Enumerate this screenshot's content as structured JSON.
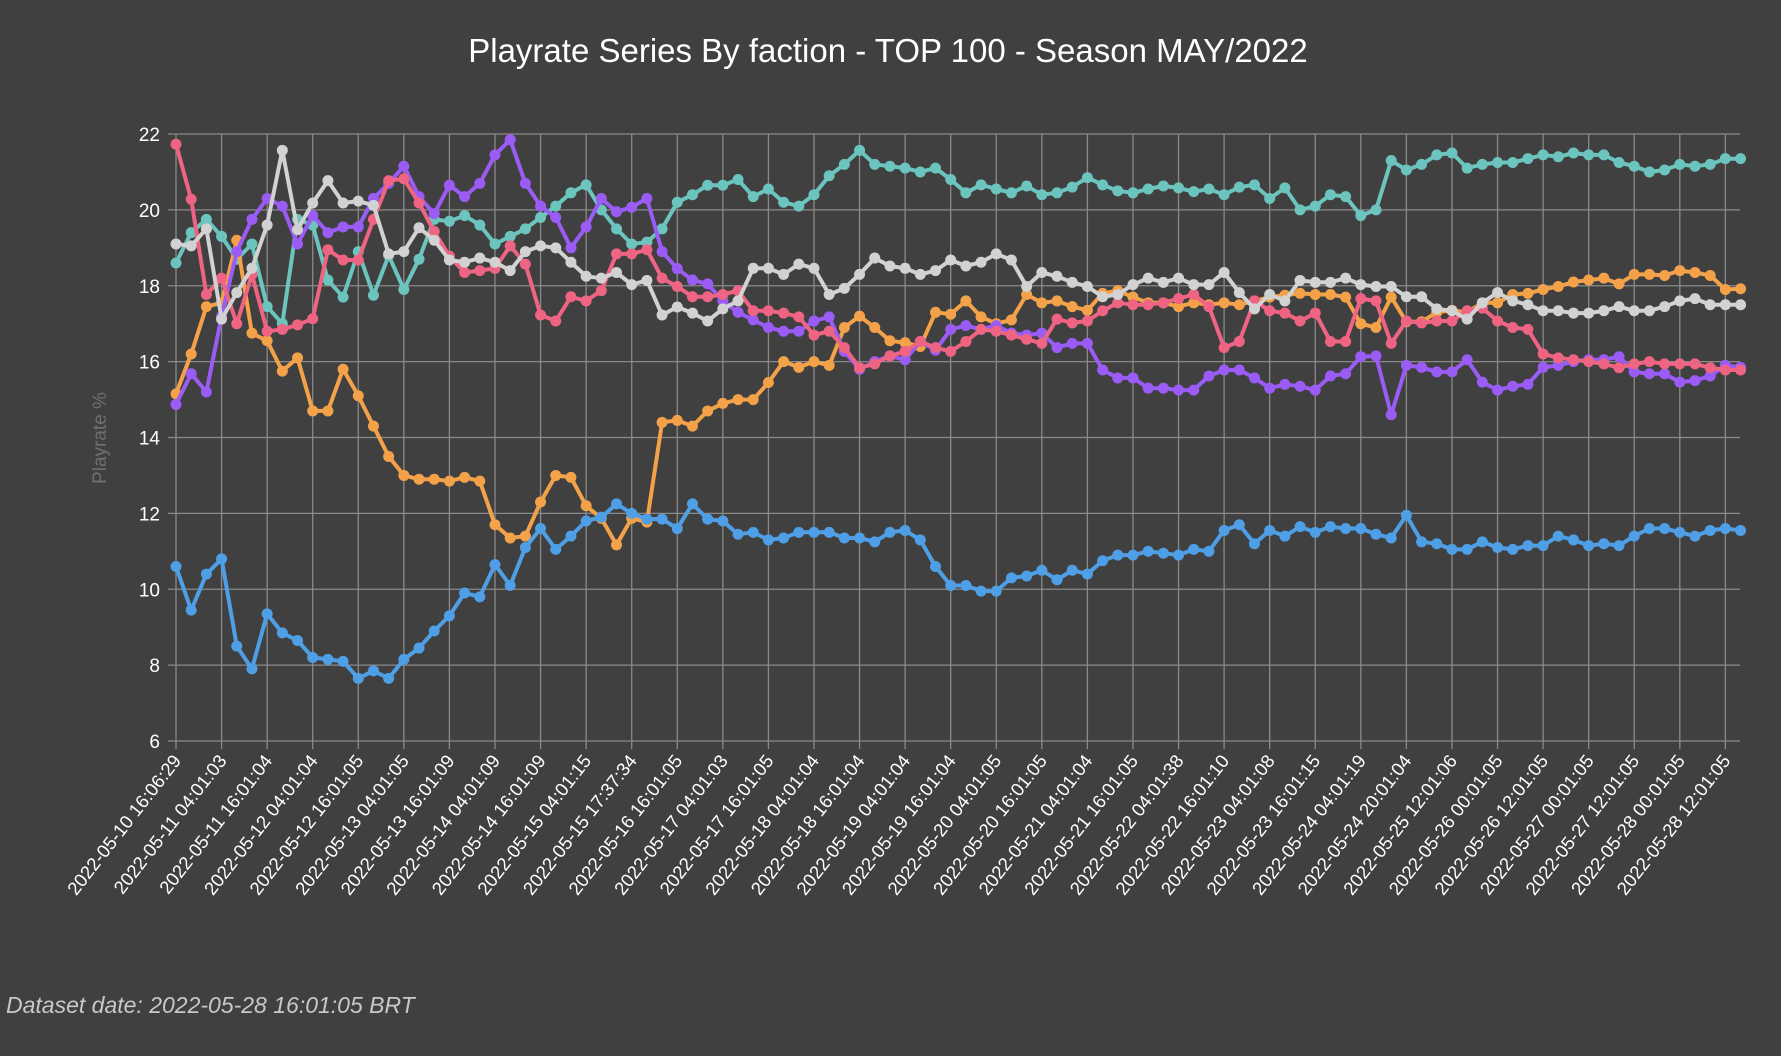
{
  "chart_data": {
    "type": "line",
    "title": "Playrate Series By faction - TOP 100 - Season MAY/2022",
    "xlabel": "",
    "ylabel": "Playrate %",
    "ylim": [
      6,
      22
    ],
    "yticks": [
      6,
      8,
      10,
      12,
      14,
      16,
      18,
      20,
      22
    ],
    "grid": true,
    "points_per_tick": 3,
    "x_tick_labels": [
      "2022-05-10 16:06:29",
      "2022-05-11 04:01:03",
      "2022-05-11 16:01:04",
      "2022-05-12 04:01:04",
      "2022-05-12 16:01:05",
      "2022-05-13 04:01:05",
      "2022-05-13 16:01:09",
      "2022-05-14 04:01:09",
      "2022-05-14 16:01:09",
      "2022-05-15 04:01:15",
      "2022-05-15 17:37:34",
      "2022-05-16 16:01:05",
      "2022-05-17 04:01:03",
      "2022-05-17 16:01:05",
      "2022-05-18 04:01:04",
      "2022-05-18 16:01:04",
      "2022-05-19 04:01:04",
      "2022-05-19 16:01:04",
      "2022-05-20 04:01:05",
      "2022-05-20 16:01:05",
      "2022-05-21 04:01:04",
      "2022-05-21 16:01:05",
      "2022-05-22 04:01:38",
      "2022-05-22 16:01:10",
      "2022-05-23 04:01:08",
      "2022-05-23 16:01:15",
      "2022-05-24 04:01:19",
      "2022-05-24 20:01:04",
      "2022-05-25 12:01:06",
      "2022-05-26 00:01:05",
      "2022-05-26 12:01:05",
      "2022-05-27 00:01:05",
      "2022-05-27 12:01:05",
      "2022-05-28 00:01:05",
      "2022-05-28 12:01:05"
    ],
    "series": [
      {
        "color": "#6cc4be",
        "values": [
          18.6,
          19.4,
          19.75,
          19.3,
          18.7,
          19.1,
          17.45,
          17.0,
          19.75,
          19.6,
          18.15,
          17.7,
          18.9,
          17.75,
          18.8,
          17.9,
          18.7,
          19.75,
          19.7,
          19.85,
          19.6,
          19.1,
          19.3,
          19.5,
          19.8,
          20.1,
          20.45,
          20.66,
          20.0,
          19.5,
          19.1,
          19.15,
          19.5,
          20.2,
          20.4,
          20.65,
          20.65,
          20.8,
          20.35,
          20.55,
          20.2,
          20.1,
          20.4,
          20.9,
          21.2,
          21.57,
          21.2,
          21.15,
          21.1,
          21.0,
          21.1,
          20.8,
          20.45,
          20.66,
          20.55,
          20.45,
          20.63,
          20.4,
          20.45,
          20.6,
          20.85,
          20.66,
          20.5,
          20.45,
          20.55,
          20.63,
          20.58,
          20.48,
          20.55,
          20.4,
          20.6,
          20.66,
          20.3,
          20.58,
          20.0,
          20.1,
          20.4,
          20.35,
          19.85,
          20.0,
          21.3,
          21.05,
          21.2,
          21.45,
          21.5,
          21.1,
          21.2,
          21.25,
          21.25,
          21.35,
          21.45,
          21.4,
          21.5,
          21.45,
          21.45,
          21.25,
          21.15,
          21.0,
          21.05,
          21.2,
          21.15,
          21.2,
          21.35,
          21.35
        ]
      },
      {
        "color": "#f4a24a",
        "values": [
          15.15,
          16.2,
          17.45,
          17.55,
          19.2,
          16.75,
          16.55,
          15.75,
          16.1,
          14.7,
          14.7,
          15.8,
          15.1,
          14.3,
          13.5,
          13.0,
          12.9,
          12.9,
          12.85,
          12.95,
          12.85,
          11.7,
          11.35,
          11.4,
          12.3,
          13.0,
          12.95,
          12.2,
          11.87,
          11.17,
          11.87,
          11.77,
          14.4,
          14.45,
          14.3,
          14.7,
          14.9,
          15.0,
          15.0,
          15.45,
          16.0,
          15.85,
          16.0,
          15.9,
          16.9,
          17.2,
          16.9,
          16.55,
          16.5,
          16.4,
          17.3,
          17.25,
          17.6,
          17.18,
          17.0,
          17.1,
          17.77,
          17.55,
          17.6,
          17.45,
          17.35,
          17.8,
          17.87,
          17.7,
          17.55,
          17.55,
          17.45,
          17.55,
          17.5,
          17.55,
          17.5,
          17.6,
          17.7,
          17.75,
          17.8,
          17.77,
          17.77,
          17.7,
          17.0,
          16.9,
          17.7,
          17.05,
          17.05,
          17.3,
          17.35,
          17.3,
          17.55,
          17.55,
          17.77,
          17.8,
          17.9,
          17.98,
          18.1,
          18.15,
          18.2,
          18.05,
          18.3,
          18.3,
          18.27,
          18.4,
          18.35,
          18.27,
          17.9,
          17.92
        ]
      },
      {
        "color": "#9a5cf5",
        "values": [
          14.87,
          15.68,
          15.2,
          17.2,
          18.9,
          19.75,
          20.3,
          20.1,
          19.1,
          19.85,
          19.4,
          19.55,
          19.55,
          20.3,
          20.7,
          21.15,
          20.35,
          19.9,
          20.65,
          20.35,
          20.7,
          21.45,
          21.85,
          20.7,
          20.1,
          19.8,
          19.0,
          19.55,
          20.3,
          19.95,
          20.07,
          20.3,
          18.9,
          18.45,
          18.15,
          18.05,
          17.6,
          17.3,
          17.1,
          16.9,
          16.8,
          16.8,
          17.07,
          17.18,
          16.27,
          15.8,
          16.0,
          16.15,
          16.05,
          16.53,
          16.3,
          16.85,
          16.95,
          16.85,
          16.95,
          16.75,
          16.7,
          16.75,
          16.37,
          16.48,
          16.48,
          15.78,
          15.57,
          15.57,
          15.3,
          15.3,
          15.25,
          15.25,
          15.62,
          15.78,
          15.78,
          15.57,
          15.3,
          15.4,
          15.35,
          15.25,
          15.62,
          15.68,
          16.13,
          16.15,
          14.6,
          15.9,
          15.85,
          15.73,
          15.73,
          16.05,
          15.46,
          15.25,
          15.35,
          15.4,
          15.85,
          15.9,
          16.0,
          16.05,
          16.05,
          16.13,
          15.73,
          15.68,
          15.68,
          15.46,
          15.5,
          15.62,
          15.9,
          15.85
        ]
      },
      {
        "color": "#ee6482",
        "values": [
          21.73,
          20.28,
          17.77,
          18.2,
          17.0,
          18.3,
          16.8,
          16.85,
          16.97,
          17.13,
          18.95,
          18.68,
          18.68,
          19.75,
          20.77,
          20.82,
          20.18,
          19.43,
          18.78,
          18.35,
          18.4,
          18.46,
          19.05,
          18.57,
          17.23,
          17.07,
          17.71,
          17.6,
          17.87,
          18.84,
          18.84,
          18.95,
          18.2,
          17.98,
          17.71,
          17.71,
          17.77,
          17.87,
          17.34,
          17.34,
          17.28,
          17.18,
          16.7,
          16.8,
          16.37,
          15.84,
          15.94,
          16.15,
          16.27,
          16.53,
          16.37,
          16.27,
          16.53,
          16.85,
          16.8,
          16.7,
          16.59,
          16.48,
          17.12,
          17.02,
          17.07,
          17.34,
          17.55,
          17.5,
          17.5,
          17.55,
          17.66,
          17.77,
          17.45,
          16.37,
          16.53,
          17.6,
          17.34,
          17.28,
          17.07,
          17.28,
          16.53,
          16.53,
          17.66,
          17.6,
          16.48,
          17.07,
          17.02,
          17.07,
          17.07,
          17.34,
          17.41,
          17.07,
          16.9,
          16.85,
          16.2,
          16.1,
          16.05,
          16.0,
          15.94,
          15.84,
          15.94,
          16.0,
          15.94,
          15.94,
          15.94,
          15.84,
          15.78,
          15.78
        ]
      },
      {
        "color": "#d2d2d2",
        "values": [
          19.1,
          19.05,
          19.5,
          17.12,
          17.82,
          18.46,
          19.6,
          21.57,
          19.48,
          20.18,
          20.77,
          20.18,
          20.23,
          20.12,
          18.84,
          18.9,
          19.53,
          19.2,
          18.68,
          18.62,
          18.73,
          18.62,
          18.4,
          18.9,
          19.05,
          19.0,
          18.62,
          18.25,
          18.2,
          18.35,
          18.03,
          18.14,
          17.23,
          17.44,
          17.28,
          17.07,
          17.39,
          17.6,
          18.46,
          18.46,
          18.3,
          18.57,
          18.46,
          17.77,
          17.93,
          18.3,
          18.73,
          18.52,
          18.46,
          18.3,
          18.4,
          18.68,
          18.52,
          18.62,
          18.84,
          18.68,
          17.98,
          18.35,
          18.25,
          18.09,
          17.98,
          17.71,
          17.77,
          18.03,
          18.2,
          18.09,
          18.2,
          18.03,
          18.03,
          18.35,
          17.82,
          17.39,
          17.77,
          17.6,
          18.14,
          18.09,
          18.09,
          18.2,
          18.03,
          17.98,
          17.98,
          17.71,
          17.71,
          17.39,
          17.34,
          17.12,
          17.55,
          17.82,
          17.6,
          17.5,
          17.34,
          17.34,
          17.28,
          17.28,
          17.34,
          17.45,
          17.34,
          17.34,
          17.45,
          17.6,
          17.66,
          17.5,
          17.5,
          17.5
        ]
      },
      {
        "color": "#4f9fe6",
        "values": [
          10.6,
          9.45,
          10.4,
          10.8,
          8.5,
          7.9,
          9.35,
          8.85,
          8.65,
          8.2,
          8.15,
          8.1,
          7.65,
          7.85,
          7.65,
          8.15,
          8.45,
          8.9,
          9.3,
          9.9,
          9.8,
          10.65,
          10.1,
          11.1,
          11.6,
          11.05,
          11.4,
          11.8,
          11.9,
          12.25,
          12.0,
          11.85,
          11.85,
          11.6,
          12.25,
          11.85,
          11.8,
          11.45,
          11.5,
          11.3,
          11.35,
          11.5,
          11.5,
          11.5,
          11.35,
          11.35,
          11.25,
          11.5,
          11.55,
          11.3,
          10.6,
          10.1,
          10.1,
          9.95,
          9.95,
          10.3,
          10.35,
          10.5,
          10.25,
          10.5,
          10.4,
          10.75,
          10.9,
          10.9,
          11.0,
          10.95,
          10.9,
          11.05,
          11.0,
          11.55,
          11.7,
          11.2,
          11.55,
          11.4,
          11.65,
          11.5,
          11.65,
          11.6,
          11.6,
          11.45,
          11.35,
          11.95,
          11.25,
          11.2,
          11.05,
          11.05,
          11.25,
          11.1,
          11.05,
          11.15,
          11.15,
          11.4,
          11.3,
          11.15,
          11.2,
          11.15,
          11.4,
          11.6,
          11.6,
          11.5,
          11.4,
          11.55,
          11.6,
          11.55
        ]
      }
    ]
  },
  "footer": {
    "dataset_date": "Dataset date: 2022-05-28 16:01:05 BRT"
  }
}
